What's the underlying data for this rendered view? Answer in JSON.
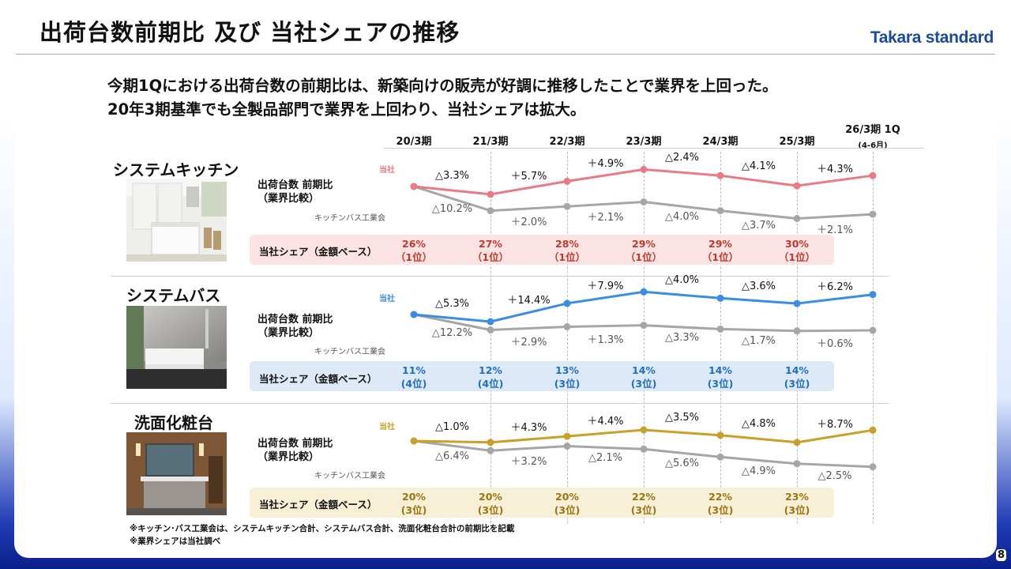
{
  "title": "出荷台数前期比 及び 当社シェアの推移",
  "logo": "Takara standard",
  "lead": [
    "今期1Qにおける出荷台数の前期比は、新築向けの販売が好調に推移したことで業界を上回った。",
    "20年3期基準でも全製品部門で業界を上回わり、当社シェアは拡大。"
  ],
  "periods": [
    "20/3期",
    "21/3期",
    "22/3期",
    "23/3期",
    "24/3期",
    "25/3期",
    "26/3期 1Q"
  ],
  "period_note": "(4-6月)",
  "labels": {
    "metric": "出荷台数 前期比\n（業界比較）",
    "own": "当社",
    "industry": "キッチンバス工業会",
    "share": "当社シェア（金額ベース）"
  },
  "colors": {
    "kitchen": "#e87b84",
    "bath": "#3a8de0",
    "vanity": "#c9a02a",
    "industry": "#a6a6a6"
  },
  "chart_data": [
    {
      "type": "line",
      "name": "システムキッチン",
      "x": [
        "20/3期",
        "21/3期",
        "22/3期",
        "23/3期",
        "24/3期",
        "25/3期",
        "26/3期 1Q"
      ],
      "series": [
        {
          "name": "当社",
          "labels": [
            "",
            "△3.3%",
            "＋5.7%",
            "＋4.9%",
            "△2.4%",
            "△4.1%",
            "＋4.3%"
          ],
          "values": [
            100,
            96.7,
            102.2,
            107.2,
            104.6,
            100.3,
            104.6
          ]
        },
        {
          "name": "キッチンバス工業会",
          "labels": [
            "",
            "△10.2%",
            "＋2.0%",
            "＋2.1%",
            "△4.0%",
            "△3.7%",
            "＋2.1%"
          ],
          "values": [
            100,
            89.8,
            91.6,
            93.5,
            89.8,
            86.5,
            88.3
          ]
        }
      ],
      "share": {
        "values": [
          "26%",
          "27%",
          "28%",
          "29%",
          "29%",
          "30%"
        ],
        "ranks": [
          "（1位）",
          "（1位）",
          "（1位）",
          "（1位）",
          "（1位）",
          "（1位）"
        ]
      }
    },
    {
      "type": "line",
      "name": "システムバス",
      "x": [
        "20/3期",
        "21/3期",
        "22/3期",
        "23/3期",
        "24/3期",
        "25/3期",
        "26/3期 1Q"
      ],
      "series": [
        {
          "name": "当社",
          "labels": [
            "",
            "△5.3%",
            "＋14.4%",
            "＋7.9%",
            "△4.0%",
            "△3.6%",
            "＋6.2%"
          ],
          "values": [
            100,
            94.7,
            108.3,
            116.9,
            112.2,
            108.2,
            114.9
          ]
        },
        {
          "name": "キッチンバス工業会",
          "labels": [
            "",
            "△12.2%",
            "＋2.9%",
            "＋1.3%",
            "△3.3%",
            "△1.7%",
            "＋0.6%"
          ],
          "values": [
            100,
            87.8,
            90.3,
            91.5,
            88.5,
            87.0,
            87.5
          ]
        }
      ],
      "share": {
        "values": [
          "11%",
          "12%",
          "13%",
          "14%",
          "14%",
          "14%"
        ],
        "ranks": [
          "(4位)",
          "(4位)",
          "(3位)",
          "(3位)",
          "(3位)",
          "(3位)"
        ]
      }
    },
    {
      "type": "line",
      "name": "洗面化粧台",
      "x": [
        "20/3期",
        "21/3期",
        "22/3期",
        "23/3期",
        "24/3期",
        "25/3期",
        "26/3期 1Q"
      ],
      "series": [
        {
          "name": "当社",
          "labels": [
            "",
            "△1.0%",
            "＋4.3%",
            "＋4.4%",
            "△3.5%",
            "△4.8%",
            "＋8.7%"
          ],
          "values": [
            100,
            99.0,
            103.3,
            107.8,
            104.0,
            99.0,
            107.6
          ]
        },
        {
          "name": "キッチンバス工業会",
          "labels": [
            "",
            "△6.4%",
            "＋3.2%",
            "△2.1%",
            "△5.6%",
            "△4.9%",
            "△2.5%"
          ],
          "values": [
            100,
            93.6,
            96.6,
            94.6,
            89.3,
            84.9,
            82.8
          ]
        }
      ],
      "share": {
        "values": [
          "20%",
          "20%",
          "20%",
          "22%",
          "22%",
          "23%"
        ],
        "ranks": [
          "(3位)",
          "(3位)",
          "(3位)",
          "(3位)",
          "(3位)",
          "(3位)"
        ]
      }
    }
  ],
  "footnotes": [
    "※キッチン･バス工業会は、システムキッチン合計、システムバス合計、洗面化粧台合計の前期比を記載",
    "※業界シェアは当社調べ"
  ],
  "page_number": "8"
}
